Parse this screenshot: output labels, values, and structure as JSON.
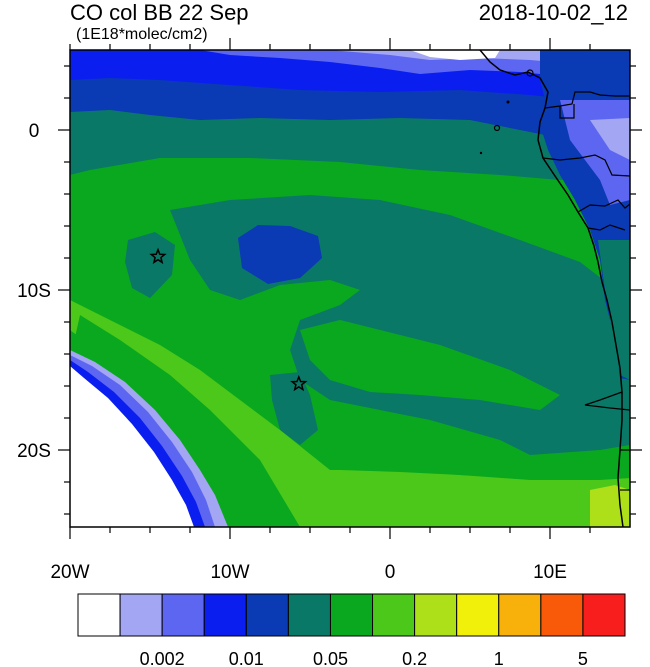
{
  "header": {
    "title": "CO col BB 22 Sep",
    "units": "(1E18*molec/cm2)",
    "datetime": "2018-10-02_12"
  },
  "map": {
    "region": "Southeast Atlantic / West Africa",
    "lon_range": [
      -20,
      15
    ],
    "lat_range": [
      -25,
      5
    ],
    "x_tick_labels": [
      "20W",
      "10W",
      "0",
      "10E"
    ],
    "y_tick_labels": [
      "0",
      "10S",
      "20S"
    ],
    "markers": [
      {
        "name": "star-marker",
        "lon": -14.5,
        "lat": -8
      },
      {
        "name": "star-marker",
        "lon": -5.7,
        "lat": -16
      }
    ]
  },
  "colorbar": {
    "colors": [
      "#ffffff",
      "#a3a7f3",
      "#5d66f0",
      "#0a1ef0",
      "#0a3ab4",
      "#0a7866",
      "#0aa81e",
      "#4cc81a",
      "#aee01a",
      "#f0f00a",
      "#f8b00a",
      "#f85a0a",
      "#f81e1e"
    ],
    "labels": [
      "0.002",
      "0.01",
      "0.05",
      "0.2",
      "1",
      "5"
    ]
  }
}
